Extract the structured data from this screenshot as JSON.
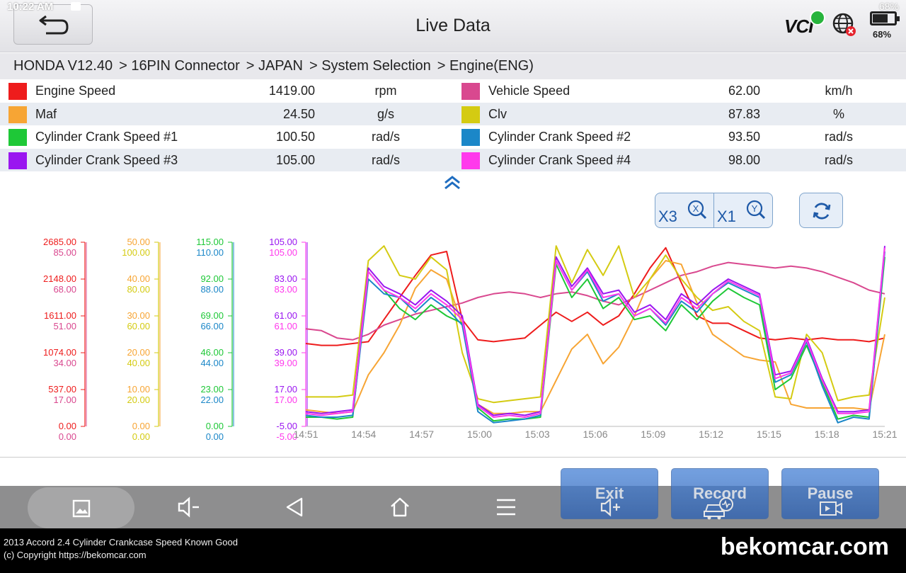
{
  "status_bar": {
    "time": "10:22 AM",
    "battery_text": "68%"
  },
  "header": {
    "title": "Live Data",
    "vci_label": "VCI",
    "battery_percent": "68%"
  },
  "breadcrumb": [
    "HONDA V12.40",
    "> 16PIN Connector",
    "> JAPAN",
    "> System Selection",
    "> Engine(ENG)"
  ],
  "parameters": [
    {
      "name": "Engine Speed",
      "value": "1419.00",
      "unit": "rpm",
      "color": "#ee1c1c"
    },
    {
      "name": "Vehicle Speed",
      "value": "62.00",
      "unit": "km/h",
      "color": "#d9488f"
    },
    {
      "name": "Maf",
      "value": "24.50",
      "unit": "g/s",
      "color": "#f7a534"
    },
    {
      "name": "Clv",
      "value": "87.83",
      "unit": "%",
      "color": "#d4cb12"
    },
    {
      "name": "Cylinder Crank Speed #1",
      "value": "100.50",
      "unit": "rad/s",
      "color": "#1ec837"
    },
    {
      "name": "Cylinder Crank Speed #2",
      "value": "93.50",
      "unit": "rad/s",
      "color": "#1b87c8"
    },
    {
      "name": "Cylinder Crank Speed #3",
      "value": "105.00",
      "unit": "rad/s",
      "color": "#9a16f0"
    },
    {
      "name": "Cylinder Crank Speed #4",
      "value": "98.00",
      "unit": "rad/s",
      "color": "#ff39ec"
    }
  ],
  "zoom": {
    "x_label": "X3",
    "x_icon": "X",
    "y_label": "X1",
    "y_icon": "Y"
  },
  "actions": {
    "exit": "Exit",
    "record": "Record",
    "pause": "Pause"
  },
  "footer": {
    "caption": "2013 Accord 2.4 Cylinder Crankcase Speed Known Good",
    "copyright": "(c) Copyright https://bekomcar.com",
    "brand": "bekomcar.com"
  },
  "chart_data": {
    "type": "line",
    "x_ticks": [
      "14:51",
      "14:54",
      "14:57",
      "15:00",
      "15:03",
      "15:06",
      "15:09",
      "15:12",
      "15:15",
      "15:18",
      "15:21"
    ],
    "axes": [
      {
        "ticks": [
          "2685.00",
          "2148.00",
          "1611.00",
          "1074.00",
          "537.00",
          "0.00"
        ],
        "color": "#ee1c1c"
      },
      {
        "ticks": [
          "85.00",
          "68.00",
          "51.00",
          "34.00",
          "17.00",
          "0.00"
        ],
        "color": "#d9488f"
      },
      {
        "ticks": [
          "50.00",
          "40.00",
          "30.00",
          "20.00",
          "10.00",
          "0.00"
        ],
        "color": "#f7a534"
      },
      {
        "ticks": [
          "100.00",
          "80.00",
          "60.00",
          "40.00",
          "20.00",
          "0.00"
        ],
        "color": "#d4cb12"
      },
      {
        "ticks": [
          "115.00",
          "92.00",
          "69.00",
          "46.00",
          "23.00",
          "0.00"
        ],
        "color": "#1ec837"
      },
      {
        "ticks": [
          "110.00",
          "88.00",
          "66.00",
          "44.00",
          "22.00",
          "0.00"
        ],
        "color": "#1b87c8"
      },
      {
        "ticks": [
          "105.00",
          "83.00",
          "61.00",
          "39.00",
          "17.00",
          "-5.00"
        ],
        "color": "#9a16f0"
      },
      {
        "ticks": [
          "105.00",
          "83.00",
          "61.00",
          "39.00",
          "17.00",
          "-5.00"
        ],
        "color": "#ff39ec"
      }
    ],
    "series": [
      {
        "name": "Engine Speed",
        "color": "#ee1c1c",
        "y": [
          0.45,
          0.44,
          0.44,
          0.45,
          0.46,
          0.58,
          0.7,
          0.82,
          0.93,
          0.95,
          0.58,
          0.47,
          0.46,
          0.47,
          0.48,
          0.55,
          0.62,
          0.57,
          0.62,
          0.55,
          0.6,
          0.72,
          0.86,
          0.97,
          0.78,
          0.6,
          0.56,
          0.56,
          0.52,
          0.48,
          0.47,
          0.48,
          0.47,
          0.48,
          0.47,
          0.47,
          0.46,
          0.48
        ]
      },
      {
        "name": "Vehicle Speed",
        "color": "#d9488f",
        "y": [
          0.53,
          0.52,
          0.48,
          0.47,
          0.5,
          0.55,
          0.58,
          0.61,
          0.63,
          0.65,
          0.67,
          0.7,
          0.72,
          0.73,
          0.72,
          0.7,
          0.72,
          0.73,
          0.71,
          0.68,
          0.66,
          0.7,
          0.74,
          0.78,
          0.82,
          0.84,
          0.87,
          0.89,
          0.88,
          0.87,
          0.86,
          0.87,
          0.86,
          0.84,
          0.81,
          0.78,
          0.74,
          0.72
        ]
      },
      {
        "name": "Maf",
        "color": "#f7a534",
        "y": [
          0.09,
          0.08,
          0.07,
          0.08,
          0.28,
          0.4,
          0.55,
          0.75,
          0.85,
          0.8,
          0.55,
          0.12,
          0.07,
          0.07,
          0.08,
          0.08,
          0.25,
          0.42,
          0.5,
          0.34,
          0.43,
          0.6,
          0.8,
          0.9,
          0.88,
          0.67,
          0.5,
          0.44,
          0.38,
          0.36,
          0.35,
          0.12,
          0.1,
          0.1,
          0.1,
          0.1,
          0.09,
          0.5
        ]
      },
      {
        "name": "Clv",
        "color": "#d4cb12",
        "y": [
          0.16,
          0.16,
          0.16,
          0.17,
          0.9,
          0.98,
          0.82,
          0.8,
          0.92,
          0.85,
          0.4,
          0.15,
          0.13,
          0.14,
          0.15,
          0.16,
          0.98,
          0.78,
          0.96,
          0.82,
          0.98,
          0.7,
          0.8,
          0.93,
          0.8,
          0.7,
          0.63,
          0.65,
          0.57,
          0.52,
          0.16,
          0.15,
          0.5,
          0.4,
          0.14,
          0.16,
          0.17,
          0.7
        ]
      },
      {
        "name": "Cylinder Crank Speed #1",
        "color": "#1ec837",
        "y": [
          0.05,
          0.05,
          0.04,
          0.05,
          0.84,
          0.74,
          0.64,
          0.58,
          0.66,
          0.6,
          0.56,
          0.1,
          0.03,
          0.04,
          0.04,
          0.05,
          0.88,
          0.7,
          0.8,
          0.64,
          0.7,
          0.58,
          0.6,
          0.52,
          0.66,
          0.58,
          0.68,
          0.75,
          0.7,
          0.66,
          0.2,
          0.26,
          0.44,
          0.24,
          0.04,
          0.06,
          0.05,
          0.92
        ]
      },
      {
        "name": "Cylinder Crank Speed #2",
        "color": "#1b87c8",
        "y": [
          0.06,
          0.05,
          0.05,
          0.06,
          0.8,
          0.72,
          0.7,
          0.62,
          0.7,
          0.64,
          0.55,
          0.08,
          0.02,
          0.03,
          0.04,
          0.06,
          0.9,
          0.74,
          0.84,
          0.68,
          0.72,
          0.6,
          0.64,
          0.55,
          0.68,
          0.62,
          0.72,
          0.78,
          0.74,
          0.7,
          0.24,
          0.28,
          0.46,
          0.22,
          0.02,
          0.05,
          0.04,
          0.95
        ]
      },
      {
        "name": "Cylinder Crank Speed #3",
        "color": "#9a16f0",
        "y": [
          0.08,
          0.07,
          0.08,
          0.09,
          0.86,
          0.76,
          0.72,
          0.66,
          0.74,
          0.68,
          0.6,
          0.12,
          0.06,
          0.07,
          0.06,
          0.08,
          0.92,
          0.76,
          0.86,
          0.72,
          0.74,
          0.62,
          0.66,
          0.58,
          0.72,
          0.66,
          0.74,
          0.8,
          0.76,
          0.72,
          0.28,
          0.3,
          0.48,
          0.26,
          0.08,
          0.08,
          0.09,
          0.98
        ]
      },
      {
        "name": "Cylinder Crank Speed #4",
        "color": "#ff39ec",
        "y": [
          0.07,
          0.06,
          0.07,
          0.08,
          0.84,
          0.74,
          0.7,
          0.64,
          0.72,
          0.66,
          0.58,
          0.11,
          0.05,
          0.06,
          0.05,
          0.07,
          0.9,
          0.74,
          0.85,
          0.7,
          0.72,
          0.6,
          0.64,
          0.56,
          0.7,
          0.64,
          0.72,
          0.79,
          0.75,
          0.71,
          0.26,
          0.29,
          0.47,
          0.25,
          0.07,
          0.07,
          0.08,
          0.97
        ]
      }
    ]
  }
}
